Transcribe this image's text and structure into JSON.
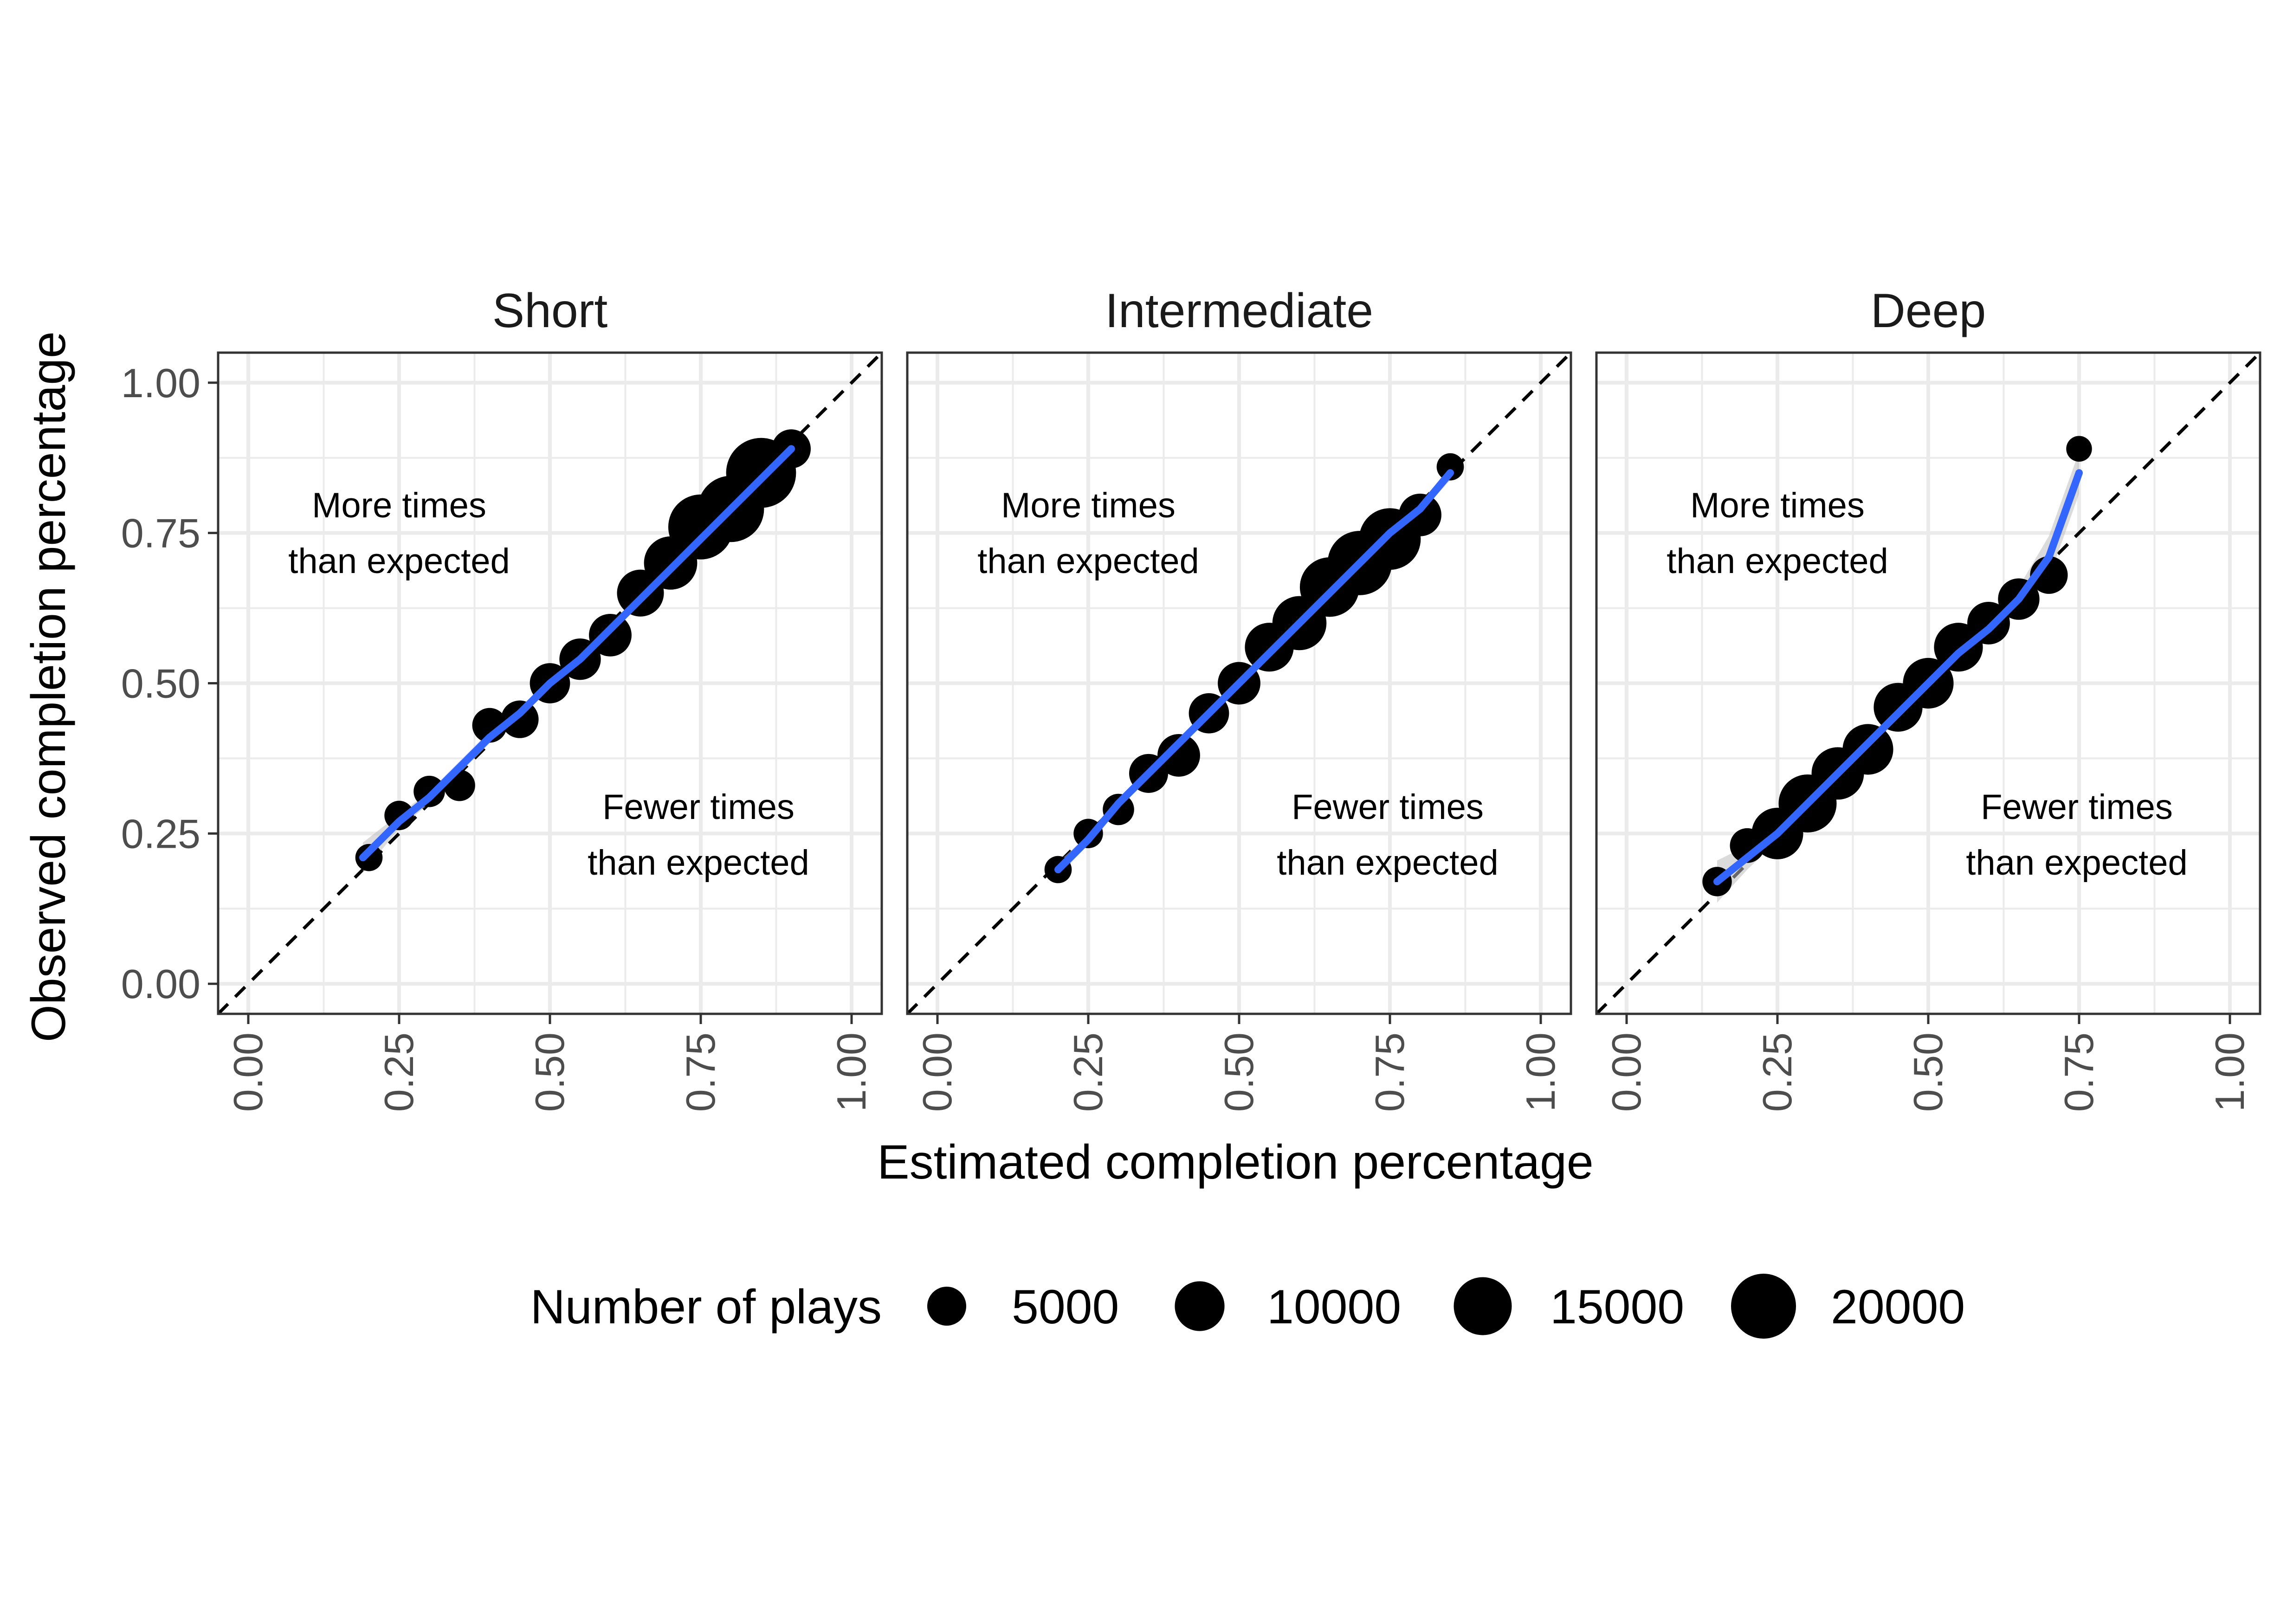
{
  "chart_data": {
    "type": "scatter",
    "facet_labels": [
      "Short",
      "Intermediate",
      "Deep"
    ],
    "xlabel": "Estimated completion percentage",
    "ylabel": "Observed completion percentage",
    "xlim": [
      -0.05,
      1.05
    ],
    "ylim": [
      -0.05,
      1.05
    ],
    "ticks": [
      0.0,
      0.25,
      0.5,
      0.75,
      1.0
    ],
    "tick_labels": [
      "0.00",
      "0.25",
      "0.50",
      "0.75",
      "1.00"
    ],
    "reference_line": "y = x (dashed)",
    "grid": true,
    "annotations": {
      "upper": [
        "More times",
        "than expected"
      ],
      "lower": [
        "Fewer times",
        "than expected"
      ]
    },
    "colors": {
      "points": "#000000",
      "smooth": "#3366ff",
      "ribbon": "#bdbdbd",
      "panel_border": "#333333",
      "grid": "#ebebeb"
    },
    "size_legend": {
      "title": "Number of plays",
      "breaks": [
        5000,
        10000,
        15000,
        20000
      ],
      "labels": [
        "5000",
        "10000",
        "15000",
        "20000"
      ]
    },
    "panels": [
      {
        "name": "Short",
        "points": [
          {
            "x": 0.2,
            "y": 0.21,
            "n": 1500
          },
          {
            "x": 0.25,
            "y": 0.28,
            "n": 2000
          },
          {
            "x": 0.3,
            "y": 0.32,
            "n": 2500
          },
          {
            "x": 0.35,
            "y": 0.33,
            "n": 2500
          },
          {
            "x": 0.4,
            "y": 0.43,
            "n": 3500
          },
          {
            "x": 0.45,
            "y": 0.44,
            "n": 4500
          },
          {
            "x": 0.5,
            "y": 0.5,
            "n": 5500
          },
          {
            "x": 0.55,
            "y": 0.54,
            "n": 6000
          },
          {
            "x": 0.6,
            "y": 0.58,
            "n": 6500
          },
          {
            "x": 0.65,
            "y": 0.65,
            "n": 8500
          },
          {
            "x": 0.7,
            "y": 0.7,
            "n": 12000
          },
          {
            "x": 0.75,
            "y": 0.76,
            "n": 20000
          },
          {
            "x": 0.8,
            "y": 0.79,
            "n": 21000
          },
          {
            "x": 0.85,
            "y": 0.85,
            "n": 24000
          },
          {
            "x": 0.9,
            "y": 0.89,
            "n": 5000
          }
        ],
        "smooth": [
          {
            "x": 0.19,
            "y": 0.21
          },
          {
            "x": 0.25,
            "y": 0.27
          },
          {
            "x": 0.3,
            "y": 0.31
          },
          {
            "x": 0.35,
            "y": 0.36
          },
          {
            "x": 0.4,
            "y": 0.41
          },
          {
            "x": 0.45,
            "y": 0.45
          },
          {
            "x": 0.5,
            "y": 0.5
          },
          {
            "x": 0.55,
            "y": 0.54
          },
          {
            "x": 0.6,
            "y": 0.59
          },
          {
            "x": 0.65,
            "y": 0.64
          },
          {
            "x": 0.7,
            "y": 0.69
          },
          {
            "x": 0.75,
            "y": 0.74
          },
          {
            "x": 0.8,
            "y": 0.79
          },
          {
            "x": 0.85,
            "y": 0.84
          },
          {
            "x": 0.9,
            "y": 0.89
          }
        ],
        "ribbon_halfwidth": [
          0.025,
          0.012,
          0.01,
          0.01,
          0.01,
          0.009,
          0.008,
          0.007,
          0.007,
          0.006,
          0.006,
          0.006,
          0.006,
          0.007,
          0.01
        ]
      },
      {
        "name": "Intermediate",
        "points": [
          {
            "x": 0.2,
            "y": 0.19,
            "n": 1500
          },
          {
            "x": 0.25,
            "y": 0.25,
            "n": 2000
          },
          {
            "x": 0.3,
            "y": 0.29,
            "n": 2500
          },
          {
            "x": 0.35,
            "y": 0.35,
            "n": 5000
          },
          {
            "x": 0.4,
            "y": 0.38,
            "n": 6500
          },
          {
            "x": 0.45,
            "y": 0.45,
            "n": 5500
          },
          {
            "x": 0.5,
            "y": 0.5,
            "n": 6500
          },
          {
            "x": 0.55,
            "y": 0.56,
            "n": 9500
          },
          {
            "x": 0.6,
            "y": 0.6,
            "n": 12500
          },
          {
            "x": 0.65,
            "y": 0.66,
            "n": 16000
          },
          {
            "x": 0.7,
            "y": 0.7,
            "n": 19500
          },
          {
            "x": 0.75,
            "y": 0.74,
            "n": 17500
          },
          {
            "x": 0.8,
            "y": 0.78,
            "n": 6500
          },
          {
            "x": 0.85,
            "y": 0.86,
            "n": 1500
          }
        ],
        "smooth": [
          {
            "x": 0.2,
            "y": 0.19
          },
          {
            "x": 0.25,
            "y": 0.24
          },
          {
            "x": 0.3,
            "y": 0.3
          },
          {
            "x": 0.35,
            "y": 0.35
          },
          {
            "x": 0.4,
            "y": 0.4
          },
          {
            "x": 0.45,
            "y": 0.45
          },
          {
            "x": 0.5,
            "y": 0.5
          },
          {
            "x": 0.55,
            "y": 0.55
          },
          {
            "x": 0.6,
            "y": 0.6
          },
          {
            "x": 0.65,
            "y": 0.65
          },
          {
            "x": 0.7,
            "y": 0.7
          },
          {
            "x": 0.75,
            "y": 0.75
          },
          {
            "x": 0.8,
            "y": 0.79
          },
          {
            "x": 0.85,
            "y": 0.85
          }
        ],
        "ribbon_halfwidth": [
          0.012,
          0.008,
          0.007,
          0.006,
          0.006,
          0.005,
          0.005,
          0.005,
          0.005,
          0.005,
          0.005,
          0.005,
          0.007,
          0.012
        ]
      },
      {
        "name": "Deep",
        "points": [
          {
            "x": 0.15,
            "y": 0.17,
            "n": 2000
          },
          {
            "x": 0.2,
            "y": 0.23,
            "n": 3500
          },
          {
            "x": 0.25,
            "y": 0.25,
            "n": 11000
          },
          {
            "x": 0.3,
            "y": 0.3,
            "n": 15000
          },
          {
            "x": 0.35,
            "y": 0.35,
            "n": 11500
          },
          {
            "x": 0.4,
            "y": 0.39,
            "n": 10500
          },
          {
            "x": 0.45,
            "y": 0.46,
            "n": 9500
          },
          {
            "x": 0.5,
            "y": 0.5,
            "n": 10500
          },
          {
            "x": 0.55,
            "y": 0.56,
            "n": 9500
          },
          {
            "x": 0.6,
            "y": 0.6,
            "n": 6500
          },
          {
            "x": 0.65,
            "y": 0.64,
            "n": 6000
          },
          {
            "x": 0.7,
            "y": 0.68,
            "n": 4500
          },
          {
            "x": 0.75,
            "y": 0.89,
            "n": 1200
          }
        ],
        "smooth": [
          {
            "x": 0.15,
            "y": 0.17
          },
          {
            "x": 0.2,
            "y": 0.21
          },
          {
            "x": 0.25,
            "y": 0.25
          },
          {
            "x": 0.3,
            "y": 0.3
          },
          {
            "x": 0.35,
            "y": 0.35
          },
          {
            "x": 0.4,
            "y": 0.4
          },
          {
            "x": 0.45,
            "y": 0.45
          },
          {
            "x": 0.5,
            "y": 0.5
          },
          {
            "x": 0.55,
            "y": 0.55
          },
          {
            "x": 0.6,
            "y": 0.59
          },
          {
            "x": 0.65,
            "y": 0.64
          },
          {
            "x": 0.7,
            "y": 0.71
          },
          {
            "x": 0.75,
            "y": 0.85
          }
        ],
        "ribbon_halfwidth": [
          0.035,
          0.02,
          0.012,
          0.01,
          0.01,
          0.01,
          0.01,
          0.01,
          0.01,
          0.012,
          0.02,
          0.035,
          0.035
        ]
      }
    ]
  }
}
